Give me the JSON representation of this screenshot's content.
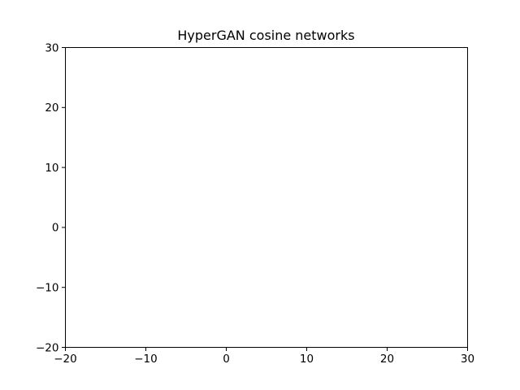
{
  "chart_data": {
    "type": "scatter",
    "title": "HyperGAN cosine networks",
    "xlabel": "",
    "ylabel": "",
    "xlim": [
      -20,
      30
    ],
    "ylim": [
      -20,
      30
    ],
    "x_ticks": [
      -20,
      -10,
      0,
      10,
      20,
      30
    ],
    "y_ticks": [
      -20,
      -10,
      0,
      10,
      20,
      30
    ],
    "x_tick_labels": [
      "−20",
      "−10",
      "0",
      "10",
      "20",
      "30"
    ],
    "y_tick_labels": [
      "−20",
      "−10",
      "0",
      "10",
      "20",
      "30"
    ],
    "grid": false,
    "series": [],
    "colors": {
      "axes": "#000000",
      "background": "#ffffff"
    }
  }
}
